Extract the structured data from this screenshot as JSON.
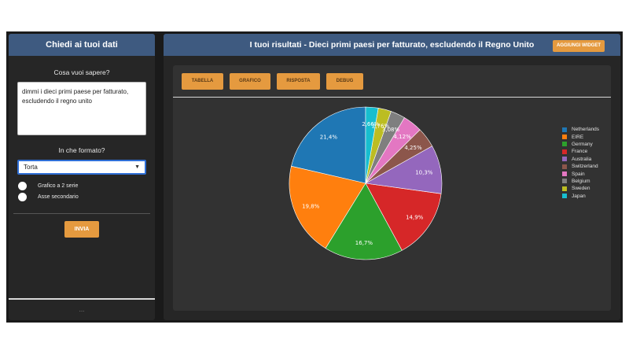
{
  "left_panel": {
    "header": "Chiedi ai tuoi dati",
    "question_label": "Cosa vuoi sapere?",
    "question_value": "dimmi i dieci primi paese per fatturato, escludendo il regno unito",
    "format_label": "In che formato?",
    "format_selected": "Torta",
    "toggles": [
      {
        "label": "Grafico a 2 serie",
        "checked": false
      },
      {
        "label": "Asse secondario",
        "checked": false
      }
    ],
    "submit_label": "INVIA",
    "footer": "..."
  },
  "right_panel": {
    "title": "I tuoi risultati - Dieci primi paesi per fatturato, escludendo il Regno Unito",
    "add_widget_label": "AGGIUNGI WIDGET",
    "tabs": [
      {
        "label": "TABELLA"
      },
      {
        "label": "GRAFICO"
      },
      {
        "label": "RISPOSTA"
      },
      {
        "label": "DEBUG"
      }
    ]
  },
  "colors": {
    "header_blue": "#3e5a80",
    "accent_orange": "#e59a3f",
    "panel_bg": "#262626"
  },
  "chart_data": {
    "type": "pie",
    "legend_position": "right",
    "categories": [
      "Netherlands",
      "EIRE",
      "Germany",
      "France",
      "Australia",
      "Switzerland",
      "Spain",
      "Belgium",
      "Sweden",
      "Japan"
    ],
    "values": [
      21.4,
      19.8,
      16.7,
      14.9,
      10.3,
      4.25,
      4.12,
      3.08,
      2.76,
      2.66
    ],
    "labels": [
      "21,4%",
      "19,8%",
      "16,7%",
      "14,9%",
      "10,3%",
      "4,25%",
      "4,12%",
      "3,08%",
      "2,76%",
      "2,66%"
    ],
    "colors": [
      "#1f77b4",
      "#ff7f0e",
      "#2ca02c",
      "#d62728",
      "#9467bd",
      "#8c564b",
      "#e377c2",
      "#7f7f7f",
      "#bcbd22",
      "#17becf"
    ],
    "start_angle_deg": 0,
    "direction": "counterclockwise"
  }
}
